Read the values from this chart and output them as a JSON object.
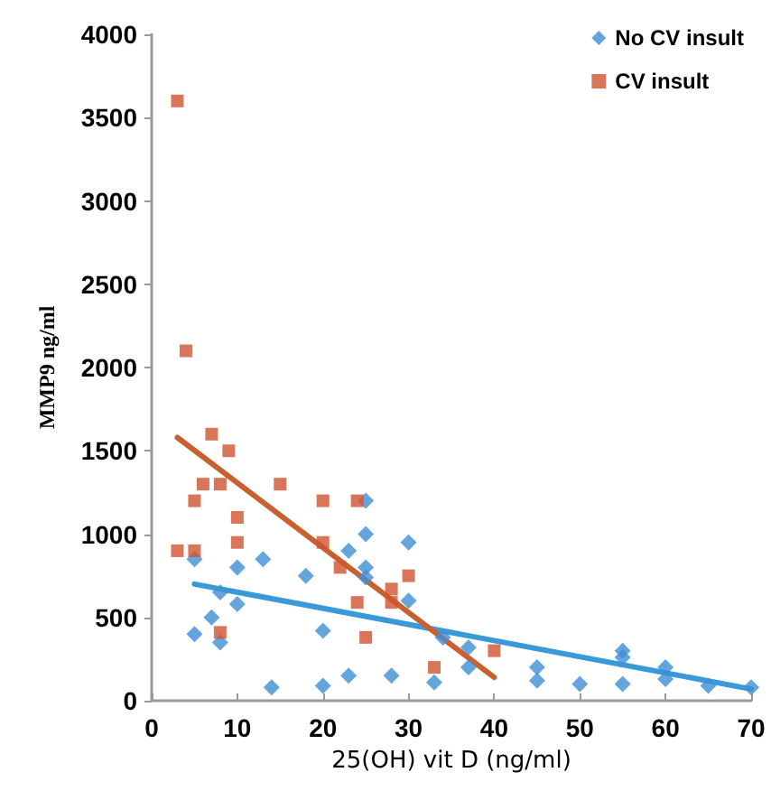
{
  "chart_data": {
    "type": "scatter",
    "xlabel": "25(OH) vit D (ng/ml)",
    "ylabel": "MMP9 ng/ml",
    "xlim": [
      0,
      70
    ],
    "xticks": [
      0,
      10,
      20,
      30,
      40,
      50,
      60,
      70
    ],
    "ylim": [
      0,
      4000
    ],
    "yticks": [
      0,
      500,
      1000,
      1500,
      2000,
      2500,
      3000,
      3500,
      4000
    ],
    "grid": false,
    "legend": "top right",
    "series": [
      {
        "name": "No CV insult",
        "color": "#3e8ed6",
        "marker": "diamond",
        "x": [
          5,
          5,
          7,
          8,
          8,
          10,
          10,
          13,
          14,
          18,
          20,
          20,
          23,
          23,
          25,
          25,
          25,
          25,
          28,
          30,
          30,
          33,
          34,
          37,
          37,
          45,
          45,
          50,
          55,
          55,
          55,
          60,
          60,
          65,
          70
        ],
        "values": [
          850,
          400,
          500,
          650,
          350,
          800,
          580,
          850,
          80,
          750,
          420,
          90,
          900,
          150,
          1200,
          1000,
          800,
          740,
          150,
          950,
          600,
          110,
          380,
          320,
          200,
          200,
          120,
          100,
          300,
          260,
          100,
          200,
          130,
          90,
          80
        ]
      },
      {
        "name": "CV insult",
        "color": "#d0532f",
        "marker": "square",
        "x": [
          3,
          4,
          7,
          9,
          6,
          8,
          15,
          5,
          20,
          24,
          10,
          10,
          20,
          3,
          5,
          22,
          28,
          28,
          30,
          24,
          25,
          8,
          33,
          40
        ],
        "values": [
          3600,
          2100,
          1600,
          1500,
          1300,
          1300,
          1300,
          1200,
          1200,
          1200,
          1100,
          950,
          950,
          900,
          900,
          800,
          670,
          590,
          750,
          590,
          380,
          410,
          200,
          300
        ]
      },
      {
        "type": "line",
        "color": "#3a9ad9",
        "marker": "none",
        "x": [
          5,
          70
        ],
        "values": [
          700,
          70
        ]
      },
      {
        "type": "line",
        "color": "#c8602f",
        "marker": "none",
        "x": [
          3,
          40
        ],
        "values": [
          1580,
          140
        ]
      }
    ]
  }
}
